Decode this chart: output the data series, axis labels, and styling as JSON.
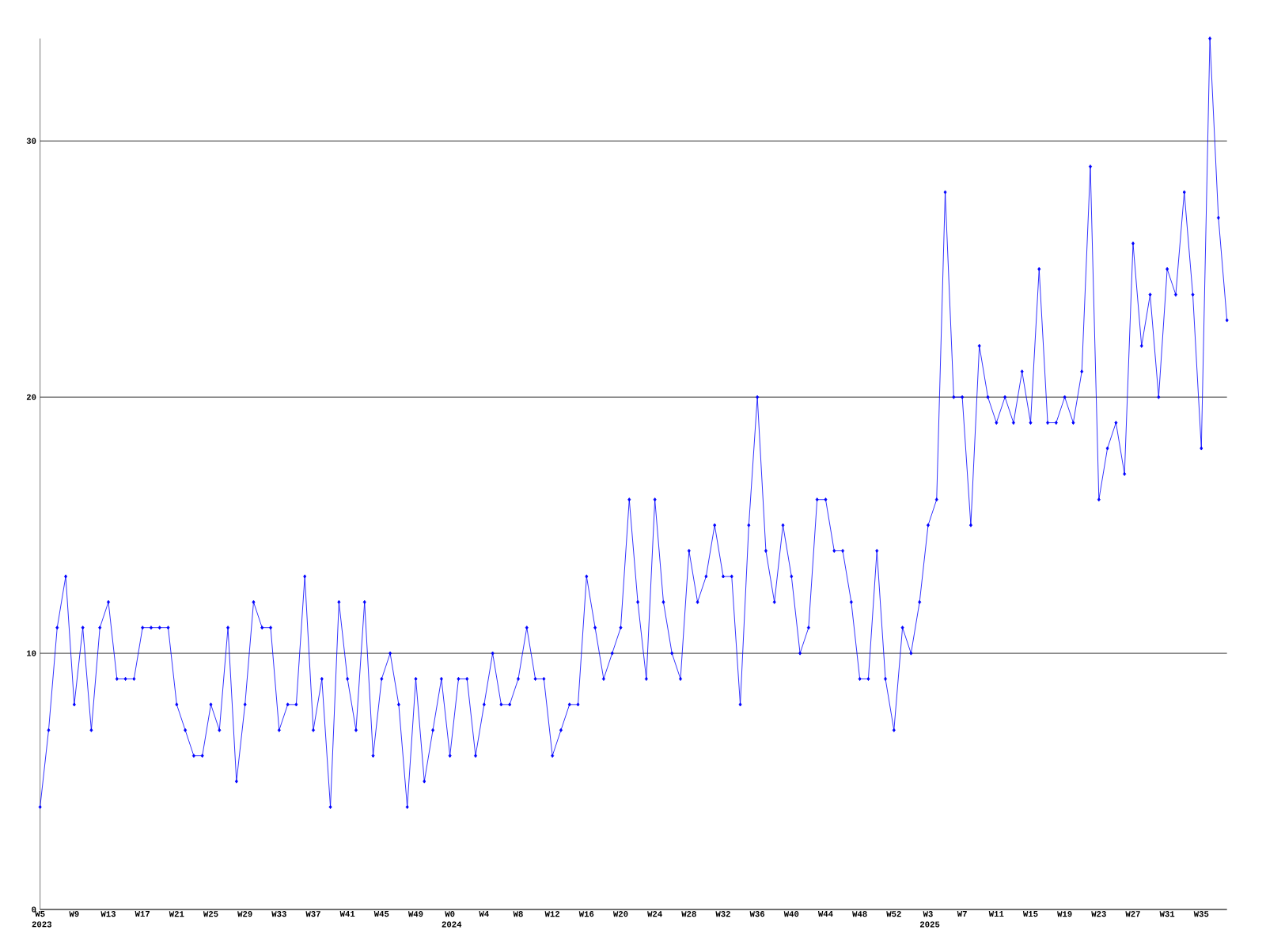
{
  "chart_data": {
    "type": "line",
    "categories": [
      "W5 2023",
      null,
      null,
      null,
      "W9",
      null,
      null,
      null,
      "W13",
      null,
      null,
      null,
      "W17",
      null,
      null,
      null,
      "W21",
      null,
      null,
      null,
      "W25",
      null,
      null,
      null,
      "W29",
      null,
      null,
      null,
      "W33",
      null,
      null,
      null,
      "W37",
      null,
      null,
      null,
      "W41",
      null,
      null,
      null,
      "W45",
      null,
      null,
      null,
      "W49",
      null,
      null,
      null,
      "W0 2024",
      null,
      null,
      null,
      "W4",
      null,
      null,
      null,
      "W8",
      null,
      null,
      null,
      "W12",
      null,
      null,
      null,
      "W16",
      null,
      null,
      null,
      "W20",
      null,
      null,
      null,
      "W24",
      null,
      null,
      null,
      "W28",
      null,
      null,
      null,
      "W32",
      null,
      null,
      null,
      "W36",
      null,
      null,
      null,
      "W40",
      null,
      null,
      null,
      "W44",
      null,
      null,
      null,
      "W48",
      null,
      null,
      null,
      "W52",
      null,
      null,
      null,
      "W3 2025",
      null,
      null,
      null,
      "W7",
      null,
      null,
      null,
      "W11",
      null,
      null,
      null,
      "W15",
      null,
      null,
      null,
      "W19",
      null,
      null,
      null,
      "W23",
      null,
      null,
      null,
      "W27",
      null,
      null,
      null,
      "W31",
      null,
      null,
      null,
      "W35",
      null,
      null,
      null
    ],
    "values": [
      4,
      7,
      11,
      13,
      8,
      11,
      7,
      11,
      12,
      9,
      9,
      9,
      11,
      11,
      11,
      11,
      8,
      7,
      6,
      6,
      8,
      7,
      11,
      5,
      8,
      12,
      11,
      11,
      7,
      8,
      8,
      13,
      7,
      9,
      4,
      12,
      9,
      7,
      12,
      6,
      9,
      10,
      8,
      4,
      9,
      5,
      7,
      9,
      6,
      9,
      9,
      6,
      8,
      10,
      8,
      8,
      9,
      11,
      9,
      9,
      6,
      7,
      8,
      8,
      13,
      11,
      9,
      10,
      11,
      16,
      12,
      9,
      16,
      12,
      10,
      9,
      14,
      12,
      13,
      15,
      13,
      13,
      8,
      15,
      20,
      14,
      12,
      15,
      13,
      10,
      11,
      16,
      16,
      14,
      14,
      12,
      9,
      9,
      14,
      9,
      7,
      11,
      10,
      12,
      15,
      16,
      28,
      20,
      20,
      15,
      22,
      20,
      19,
      20,
      19,
      21,
      19,
      25,
      19,
      19,
      20,
      19,
      21,
      29,
      16,
      18,
      19,
      17,
      26,
      22,
      24,
      20,
      25,
      24,
      28,
      24,
      18,
      34,
      27,
      23
    ],
    "color": "#0000ff",
    "marker": "diamond",
    "grid": "y",
    "ylim": [
      0,
      34
    ],
    "yticks": [
      0,
      10,
      20,
      30
    ]
  }
}
